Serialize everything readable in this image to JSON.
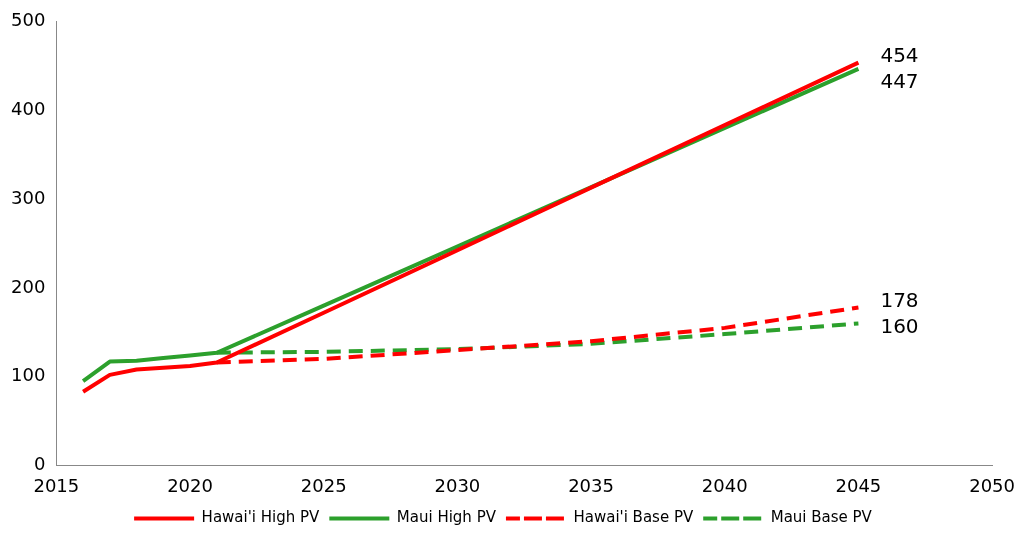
{
  "chart_data": {
    "type": "line",
    "xlim": [
      2015,
      2050
    ],
    "xticks": [
      2015,
      2020,
      2025,
      2030,
      2035,
      2040,
      2045,
      2050
    ],
    "ylim": [
      0,
      500
    ],
    "yticks": [
      0,
      100,
      200,
      300,
      400,
      500
    ],
    "grid": false,
    "legend": "bottom",
    "marker": "none",
    "series": [
      {
        "name": "Hawai'i High PV",
        "color": "#ff0000",
        "line_style": "solid",
        "x": [
          2016,
          2017,
          2018,
          2019,
          2020,
          2021,
          2025,
          2045
        ],
        "values": [
          83,
          102,
          108,
          110,
          112,
          116,
          172,
          454
        ],
        "value_labels": [
          null,
          null,
          null,
          null,
          null,
          null,
          null,
          "454"
        ]
      },
      {
        "name": "Maui High PV",
        "color": "#2ca02c",
        "line_style": "solid",
        "x": [
          2016,
          2017,
          2018,
          2019,
          2020,
          2021,
          2025,
          2045
        ],
        "values": [
          95,
          117,
          118,
          121,
          124,
          127,
          180,
          447
        ],
        "value_labels": [
          null,
          null,
          null,
          null,
          null,
          null,
          null,
          "447"
        ]
      },
      {
        "name": "Hawai'i Base PV",
        "color": "#ff0000",
        "line_style": "dashed",
        "x": [
          2021,
          2025,
          2030,
          2035,
          2040,
          2045
        ],
        "values": [
          116,
          120,
          130,
          140,
          155,
          178
        ],
        "value_labels": [
          null,
          null,
          null,
          null,
          null,
          "178"
        ]
      },
      {
        "name": "Maui Base PV",
        "color": "#2ca02c",
        "line_style": "dashed",
        "x": [
          2021,
          2025,
          2030,
          2035,
          2040,
          2045
        ],
        "values": [
          127,
          128,
          131,
          137,
          148,
          160
        ],
        "value_labels": [
          null,
          null,
          null,
          null,
          null,
          "160"
        ]
      }
    ]
  }
}
